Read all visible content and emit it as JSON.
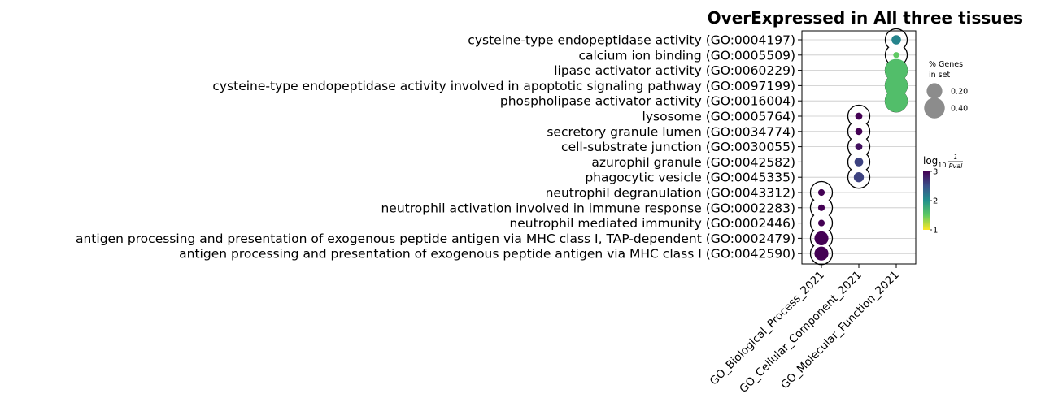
{
  "chart_data": {
    "type": "scatter",
    "title": "OverExpressed in All three tissues",
    "categories": [
      "GO_Biological_Process_2021",
      "GO_Cellular_Component_2021",
      "GO_Molecular_Function_2021"
    ],
    "terms": [
      "cysteine-type endopeptidase activity (GO:0004197)",
      "calcium ion binding (GO:0005509)",
      "lipase activator activity (GO:0060229)",
      "cysteine-type endopeptidase activity involved in apoptotic signaling pathway (GO:0097199)",
      "phospholipase activator activity (GO:0016004)",
      "lysosome (GO:0005764)",
      "secretory granule lumen (GO:0034774)",
      "cell-substrate junction (GO:0030055)",
      "azurophil granule (GO:0042582)",
      "phagocytic vesicle (GO:0045335)",
      "neutrophil degranulation (GO:0043312)",
      "neutrophil activation involved in immune response (GO:0002283)",
      "neutrophil mediated immunity (GO:0002446)",
      "antigen processing and presentation of exogenous peptide antigen via MHC class I, TAP-dependent (GO:0002479)",
      "antigen processing and presentation of exogenous peptide antigen via MHC class I (GO:0042590)"
    ],
    "points": [
      {
        "term": 0,
        "category": 2,
        "pct_genes": 0.05,
        "neglog10p": 2.1
      },
      {
        "term": 1,
        "category": 2,
        "pct_genes": 0.01,
        "neglog10p": 1.5
      },
      {
        "term": 2,
        "category": 2,
        "pct_genes": 0.5,
        "neglog10p": 1.6
      },
      {
        "term": 3,
        "category": 2,
        "pct_genes": 0.5,
        "neglog10p": 1.6
      },
      {
        "term": 4,
        "category": 2,
        "pct_genes": 0.5,
        "neglog10p": 1.6
      },
      {
        "term": 5,
        "category": 1,
        "pct_genes": 0.02,
        "neglog10p": 3.0
      },
      {
        "term": 6,
        "category": 1,
        "pct_genes": 0.02,
        "neglog10p": 3.0
      },
      {
        "term": 7,
        "category": 1,
        "pct_genes": 0.02,
        "neglog10p": 2.9
      },
      {
        "term": 8,
        "category": 1,
        "pct_genes": 0.04,
        "neglog10p": 2.6
      },
      {
        "term": 9,
        "category": 1,
        "pct_genes": 0.06,
        "neglog10p": 2.6
      },
      {
        "term": 10,
        "category": 0,
        "pct_genes": 0.015,
        "neglog10p": 3.0
      },
      {
        "term": 11,
        "category": 0,
        "pct_genes": 0.015,
        "neglog10p": 3.0
      },
      {
        "term": 12,
        "category": 0,
        "pct_genes": 0.015,
        "neglog10p": 3.0
      },
      {
        "term": 13,
        "category": 0,
        "pct_genes": 0.15,
        "neglog10p": 3.0
      },
      {
        "term": 14,
        "category": 0,
        "pct_genes": 0.15,
        "neglog10p": 3.0
      }
    ],
    "size_legend": {
      "title_line1": "% Genes",
      "title_line2": "in set",
      "entries": [
        {
          "label": "0.20",
          "value": 0.2
        },
        {
          "label": "0.40",
          "value": 0.4
        }
      ]
    },
    "colorbar": {
      "title_main": "log",
      "title_sub": "10",
      "title_num": "1",
      "title_den": "Pval",
      "ticks": [
        "1",
        "2",
        "3"
      ],
      "range": [
        1,
        3
      ],
      "colormap": "viridis_r"
    },
    "grid": "horizontal"
  }
}
